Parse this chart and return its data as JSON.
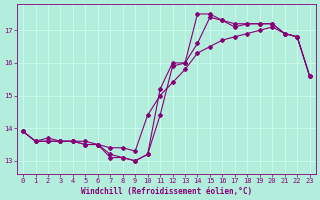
{
  "xlabel": "Windchill (Refroidissement éolien,°C)",
  "ylabel": "",
  "bg_color": "#b3eedd",
  "grid_color": "#ccffee",
  "line_color": "#880077",
  "xlim": [
    -0.5,
    23.5
  ],
  "ylim": [
    12.6,
    17.8
  ],
  "xticks": [
    0,
    1,
    2,
    3,
    4,
    5,
    6,
    7,
    8,
    9,
    10,
    11,
    12,
    13,
    14,
    15,
    16,
    17,
    18,
    19,
    20,
    21,
    22,
    23
  ],
  "yticks": [
    13,
    14,
    15,
    16,
    17
  ],
  "line1_x": [
    0,
    1,
    2,
    3,
    4,
    5,
    6,
    7,
    8,
    9,
    10,
    11,
    12,
    13,
    14,
    15,
    16,
    17,
    18,
    19,
    20,
    21,
    22,
    23
  ],
  "line1_y": [
    13.9,
    13.6,
    13.6,
    13.6,
    13.6,
    13.5,
    13.5,
    13.1,
    13.1,
    13.0,
    13.2,
    14.4,
    15.9,
    16.0,
    16.6,
    17.4,
    17.3,
    17.1,
    17.2,
    17.2,
    17.2,
    16.9,
    16.8,
    15.6
  ],
  "line2_x": [
    0,
    1,
    2,
    3,
    4,
    5,
    6,
    7,
    8,
    9,
    10,
    11,
    12,
    13,
    14,
    15,
    16,
    17,
    18,
    19,
    20,
    21,
    22,
    23
  ],
  "line2_y": [
    13.9,
    13.6,
    13.6,
    13.6,
    13.6,
    13.5,
    13.5,
    13.2,
    13.1,
    13.0,
    13.2,
    15.2,
    16.0,
    16.0,
    17.5,
    17.5,
    17.3,
    17.2,
    17.2,
    17.2,
    17.2,
    16.9,
    16.8,
    15.6
  ],
  "line3_x": [
    0,
    1,
    2,
    3,
    4,
    5,
    6,
    7,
    8,
    9,
    10,
    11,
    12,
    13,
    14,
    15,
    16,
    17,
    18,
    19,
    20,
    21,
    22,
    23
  ],
  "line3_y": [
    13.9,
    13.6,
    13.7,
    13.6,
    13.6,
    13.6,
    13.5,
    13.4,
    13.4,
    13.3,
    14.4,
    15.0,
    15.4,
    15.8,
    16.3,
    16.5,
    16.7,
    16.8,
    16.9,
    17.0,
    17.1,
    16.9,
    16.8,
    15.6
  ],
  "tick_fontsize": 5.0,
  "xlabel_fontsize": 5.5,
  "marker_size": 2.0,
  "line_width": 0.8
}
